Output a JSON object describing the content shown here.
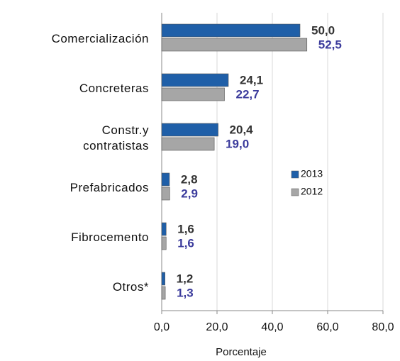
{
  "chart_data": {
    "type": "bar",
    "orientation": "horizontal",
    "categories": [
      "Comercialización",
      "Concreteras",
      "Constr.y\ncontratistas",
      "Prefabricados",
      "Fibrocemento",
      "Otros*"
    ],
    "series": [
      {
        "name": "2013",
        "color": "#1f5fa8",
        "label_color": "#333333",
        "values": [
          50.0,
          24.1,
          20.4,
          2.8,
          1.6,
          1.2
        ],
        "value_labels": [
          "50,0",
          "24,1",
          "20,4",
          "2,8",
          "1,6",
          "1,2"
        ]
      },
      {
        "name": "2012",
        "color": "#a6a6a6",
        "label_color": "#3b3b9c",
        "values": [
          52.5,
          22.7,
          19.0,
          2.9,
          1.6,
          1.3
        ],
        "value_labels": [
          "52,5",
          "22,7",
          "19,0",
          "2,9",
          "1,6",
          "1,3"
        ]
      }
    ],
    "xlim": [
      0,
      80
    ],
    "xticks": [
      {
        "value": 0,
        "label": "0,0"
      },
      {
        "value": 20,
        "label": "20,0"
      },
      {
        "value": 40,
        "label": "40,0"
      },
      {
        "value": 60,
        "label": "60,0"
      },
      {
        "value": 80,
        "label": "80,0"
      }
    ],
    "xlabel": "Porcentaje",
    "grid": true
  }
}
